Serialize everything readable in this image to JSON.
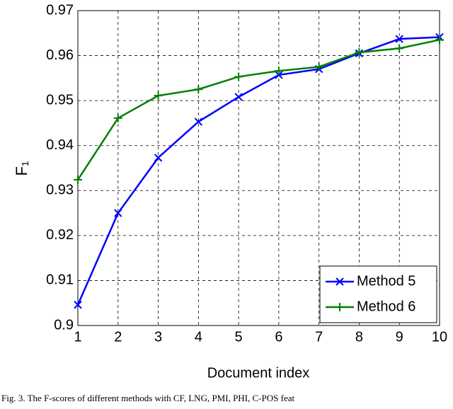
{
  "chart_data": {
    "type": "line",
    "caption": "Fig. 3. The F-scores of different methods with CF, LNG, PMI, PHI, C-POS feat",
    "x_label": "Document index",
    "y_label": "F₁",
    "x": [
      1,
      2,
      3,
      4,
      5,
      6,
      7,
      8,
      9,
      10
    ],
    "series": [
      {
        "name": "Method 5",
        "color": "#0000ff",
        "marker": "x",
        "values": [
          0.9046,
          0.925,
          0.9373,
          0.9453,
          0.9508,
          0.9557,
          0.957,
          0.9605,
          0.9637,
          0.9641
        ]
      },
      {
        "name": "Method 6",
        "color": "#008000",
        "marker": "+",
        "values": [
          0.9324,
          0.9461,
          0.9511,
          0.9525,
          0.9553,
          0.9566,
          0.9575,
          0.9607,
          0.9616,
          0.9635
        ]
      }
    ],
    "xlim": [
      1,
      10
    ],
    "xticks": [
      1,
      2,
      3,
      4,
      5,
      6,
      7,
      8,
      9,
      10
    ],
    "ylim": [
      0.9,
      0.97
    ],
    "yticks": [
      {
        "value": 0.9,
        "label": "0.9"
      },
      0.91,
      0.92,
      0.93,
      0.94,
      0.95,
      0.96,
      0.97
    ],
    "grid": true,
    "legend": "lower right"
  }
}
